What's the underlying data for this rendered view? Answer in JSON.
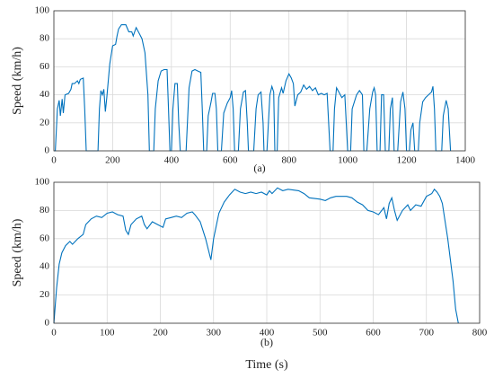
{
  "chart_data": [
    {
      "type": "line",
      "caption": "(a)",
      "ylabel": "Speed (km/h)",
      "xlim": [
        0,
        1400
      ],
      "xticks": [
        0,
        200,
        400,
        600,
        800,
        1000,
        1200,
        1400
      ],
      "ylim": [
        0,
        100
      ],
      "yticks": [
        0,
        20,
        40,
        60,
        80,
        100
      ],
      "grid": true,
      "series": [
        {
          "color": "#0072bd",
          "x": [
            0,
            5,
            12,
            18,
            22,
            28,
            32,
            38,
            50,
            58,
            62,
            70,
            80,
            85,
            90,
            100,
            105,
            110,
            150,
            155,
            160,
            165,
            170,
            175,
            180,
            190,
            200,
            210,
            215,
            220,
            230,
            245,
            255,
            265,
            270,
            280,
            290,
            300,
            310,
            320,
            325,
            340,
            345,
            355,
            365,
            375,
            385,
            390,
            395,
            400,
            405,
            412,
            420,
            425,
            430,
            450,
            460,
            470,
            480,
            490,
            500,
            505,
            510,
            520,
            525,
            535,
            540,
            548,
            553,
            558,
            570,
            578,
            590,
            600,
            605,
            610,
            615,
            628,
            635,
            645,
            652,
            658,
            662,
            680,
            688,
            695,
            705,
            712,
            715,
            725,
            735,
            742,
            748,
            752,
            760,
            765,
            775,
            780,
            790,
            800,
            808,
            815,
            820,
            830,
            840,
            850,
            860,
            870,
            880,
            890,
            900,
            910,
            920,
            930,
            935,
            940,
            950,
            955,
            962,
            970,
            980,
            990,
            995,
            1000,
            1010,
            1015,
            1030,
            1040,
            1050,
            1055,
            1065,
            1075,
            1085,
            1090,
            1095,
            1100,
            1110,
            1115,
            1122,
            1128,
            1140,
            1145,
            1152,
            1158,
            1170,
            1180,
            1188,
            1195,
            1200,
            1210,
            1215,
            1222,
            1228,
            1240,
            1245,
            1255,
            1265,
            1275,
            1285,
            1290,
            1295,
            1300,
            1320,
            1325,
            1335,
            1342,
            1350
          ],
          "values": [
            0,
            0,
            30,
            36,
            25,
            37,
            27,
            40,
            41,
            44,
            48,
            48,
            50,
            48,
            51,
            52,
            30,
            0,
            0,
            30,
            43,
            40,
            44,
            28,
            38,
            62,
            75,
            76,
            82,
            87,
            90,
            90,
            85,
            85,
            82,
            88,
            84,
            80,
            70,
            40,
            0,
            0,
            30,
            50,
            57,
            58,
            58,
            30,
            0,
            0,
            30,
            48,
            48,
            20,
            0,
            0,
            45,
            57,
            58,
            57,
            56,
            30,
            0,
            0,
            25,
            35,
            41,
            41,
            30,
            0,
            0,
            27,
            34,
            38,
            43,
            30,
            0,
            0,
            30,
            42,
            43,
            20,
            0,
            0,
            30,
            40,
            42,
            20,
            0,
            0,
            40,
            46,
            42,
            0,
            0,
            38,
            45,
            41,
            50,
            55,
            52,
            48,
            32,
            40,
            42,
            47,
            44,
            46,
            43,
            45,
            40,
            41,
            40,
            41,
            20,
            0,
            0,
            30,
            45,
            42,
            38,
            40,
            20,
            0,
            0,
            30,
            40,
            43,
            40,
            0,
            0,
            30,
            42,
            45,
            40,
            0,
            0,
            40,
            40,
            0,
            0,
            30,
            38,
            0,
            0,
            35,
            42,
            30,
            0,
            0,
            15,
            20,
            0,
            0,
            20,
            35,
            38,
            40,
            42,
            46,
            30,
            0,
            0,
            25,
            36,
            30,
            0
          ]
        }
      ]
    },
    {
      "type": "line",
      "caption": "(b)",
      "ylabel": "Speed (km/h)",
      "xlabel": "Time (s)",
      "xlim": [
        0,
        800
      ],
      "xticks": [
        0,
        100,
        200,
        300,
        400,
        500,
        600,
        700,
        800
      ],
      "ylim": [
        0,
        100
      ],
      "yticks": [
        0,
        20,
        40,
        60,
        80,
        100
      ],
      "grid": true,
      "series": [
        {
          "color": "#0072bd",
          "x": [
            0,
            5,
            10,
            15,
            22,
            30,
            35,
            45,
            55,
            60,
            70,
            80,
            90,
            100,
            110,
            120,
            130,
            135,
            140,
            145,
            155,
            165,
            170,
            175,
            185,
            195,
            205,
            210,
            220,
            230,
            240,
            250,
            260,
            265,
            275,
            285,
            295,
            300,
            310,
            320,
            330,
            340,
            350,
            360,
            370,
            380,
            390,
            400,
            405,
            410,
            420,
            430,
            440,
            460,
            470,
            480,
            500,
            510,
            520,
            530,
            550,
            560,
            570,
            580,
            590,
            600,
            610,
            620,
            625,
            630,
            635,
            640,
            645,
            655,
            665,
            670,
            680,
            690,
            700,
            710,
            715,
            720,
            725,
            730,
            740,
            750,
            755,
            760
          ],
          "values": [
            0,
            25,
            42,
            50,
            55,
            58,
            56,
            60,
            63,
            70,
            74,
            76,
            75,
            78,
            79,
            77,
            76,
            66,
            63,
            70,
            74,
            76,
            70,
            67,
            72,
            70,
            68,
            74,
            75,
            76,
            75,
            78,
            79,
            77,
            72,
            60,
            45,
            60,
            78,
            86,
            91,
            95,
            93,
            92,
            93,
            92,
            93,
            91,
            94,
            92,
            96,
            94,
            95,
            94,
            92,
            89,
            88,
            87,
            89,
            90,
            90,
            89,
            86,
            84,
            80,
            79,
            77,
            82,
            74,
            85,
            89,
            80,
            73,
            80,
            84,
            80,
            84,
            83,
            90,
            92,
            95,
            93,
            90,
            85,
            60,
            30,
            10,
            0
          ]
        }
      ]
    }
  ]
}
